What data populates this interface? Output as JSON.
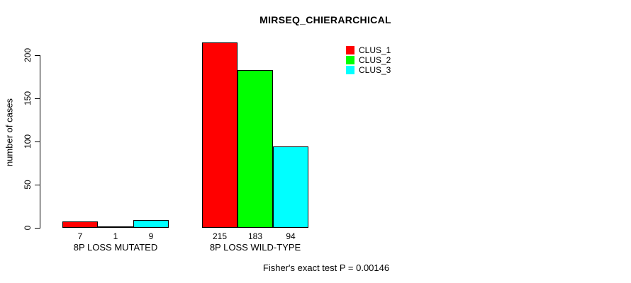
{
  "chart_data": {
    "type": "bar",
    "title": "MIRSEQ_CHIERARCHICAL",
    "ylabel": "number of cases",
    "xlabel": "",
    "ylim": [
      0,
      215
    ],
    "yticks": [
      0,
      50,
      100,
      150,
      200
    ],
    "grid": false,
    "categories": [
      "8P LOSS MUTATED",
      "8P LOSS WILD-TYPE"
    ],
    "series": [
      {
        "name": "CLUS_1",
        "color": "#ff0000",
        "values": [
          7,
          215
        ]
      },
      {
        "name": "CLUS_2",
        "color": "#00ff00",
        "values": [
          1,
          183
        ]
      },
      {
        "name": "CLUS_3",
        "color": "#00ffff",
        "values": [
          9,
          94
        ]
      }
    ],
    "bar_value_labels": [
      [
        7,
        1,
        9
      ],
      [
        215,
        183,
        94
      ]
    ],
    "legend_position": "top-right-inside",
    "annotation": "Fisher's exact test P = 0.00146"
  }
}
